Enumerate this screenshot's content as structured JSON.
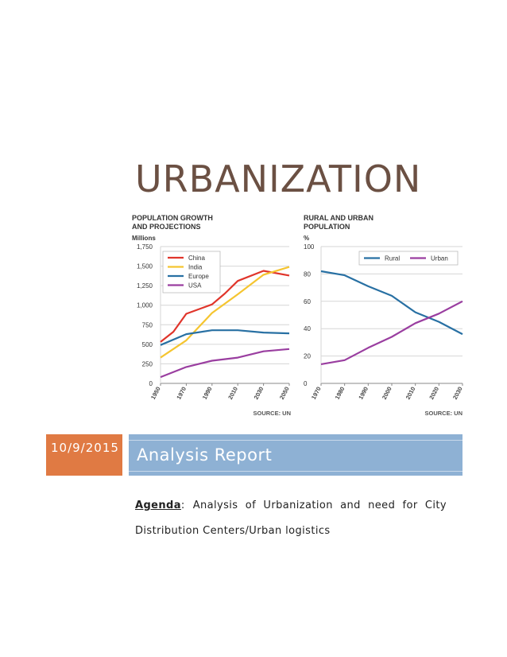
{
  "document": {
    "title": "URBANIZATION",
    "date": "10/9/2015",
    "section_title": "Analysis Report",
    "agenda_label": "Agenda",
    "agenda_sep": ":",
    "agenda_text_line1": "Analysis of Urbanization and need for City",
    "agenda_text_line2": "Distribution Centers/Urban logistics"
  },
  "colors": {
    "title": "#6b5043",
    "date_band": "#e07a43",
    "report_band": "#8eb1d4"
  },
  "chart_data": [
    {
      "type": "line",
      "title": "POPULATION GROWTH AND PROJECTIONS",
      "title_line1": "POPULATION GROWTH",
      "title_line2": "AND PROJECTIONS",
      "ylabel": "Millions",
      "source": "SOURCE: UN",
      "x": [
        1950,
        1970,
        1990,
        2010,
        2030,
        2050
      ],
      "x_ticks": [
        "1950",
        "1970",
        "1990",
        "2010",
        "2030",
        "2050"
      ],
      "y_ticks": [
        "0",
        "250",
        "500",
        "750",
        "1,000",
        "1,250",
        "1,500",
        "1,750"
      ],
      "ylim": [
        0,
        1750
      ],
      "grid": true,
      "legend_position": "top-left",
      "series": [
        {
          "name": "China",
          "color": "#e0352b",
          "x": [
            1950,
            1960,
            1970,
            1990,
            2000,
            2010,
            2030,
            2050
          ],
          "values": [
            530,
            660,
            890,
            1010,
            1150,
            1310,
            1440,
            1380
          ]
        },
        {
          "name": "India",
          "color": "#f5c530",
          "x": [
            1950,
            1970,
            1990,
            2010,
            2030,
            2050
          ],
          "values": [
            330,
            550,
            900,
            1140,
            1390,
            1490
          ]
        },
        {
          "name": "Europe",
          "color": "#2870a3",
          "x": [
            1950,
            1970,
            1990,
            2010,
            2030,
            2050
          ],
          "values": [
            490,
            630,
            680,
            680,
            650,
            640
          ]
        },
        {
          "name": "USA",
          "color": "#9a3ea0",
          "x": [
            1950,
            1970,
            1990,
            2010,
            2030,
            2050
          ],
          "values": [
            80,
            210,
            290,
            330,
            410,
            440
          ]
        }
      ]
    },
    {
      "type": "line",
      "title": "RURAL AND URBAN POPULATION",
      "title_line1": "RURAL AND URBAN",
      "title_line2": "POPULATION",
      "ylabel": "%",
      "source": "SOURCE: UN",
      "x": [
        1970,
        1980,
        1990,
        2000,
        2010,
        2020,
        2030
      ],
      "x_ticks": [
        "1970",
        "1980",
        "1990",
        "2000",
        "2010",
        "2020",
        "2030"
      ],
      "y_ticks": [
        "0",
        "20",
        "40",
        "60",
        "80",
        "100"
      ],
      "ylim": [
        0,
        100
      ],
      "grid": true,
      "legend_position": "top-right",
      "series": [
        {
          "name": "Rural",
          "color": "#2870a3",
          "values": [
            82,
            79,
            71,
            64,
            52,
            45,
            36
          ]
        },
        {
          "name": "Urban",
          "color": "#9a3ea0",
          "values": [
            14,
            17,
            26,
            34,
            44,
            51,
            60
          ]
        }
      ]
    }
  ]
}
